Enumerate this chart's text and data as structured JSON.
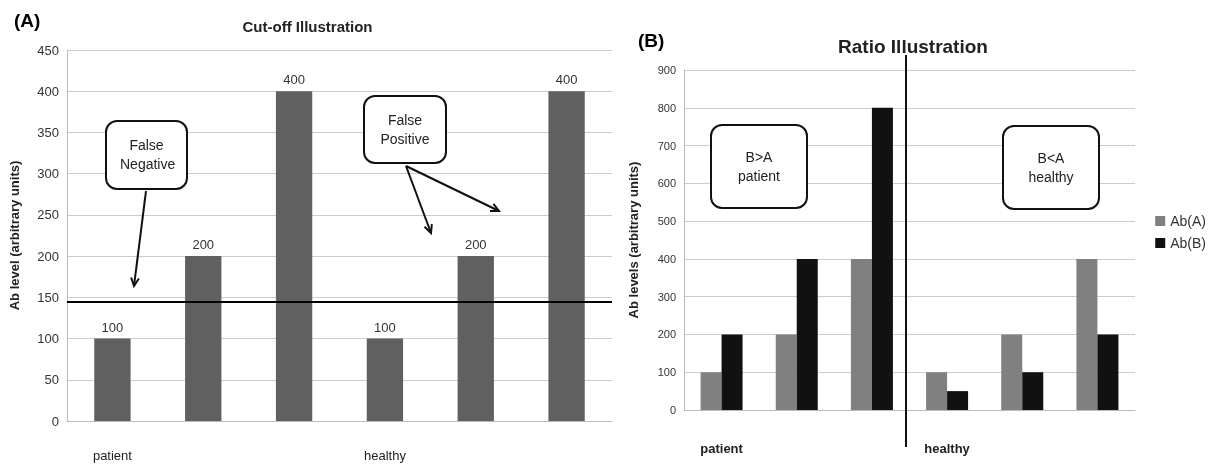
{
  "chart_data": [
    {
      "type": "bar",
      "title": "Cut-off Illustration",
      "ylabel": "Ab level (arbitrary units)",
      "categories": [
        "patient",
        null,
        null,
        "healthy",
        null,
        null
      ],
      "values": [
        100,
        200,
        400,
        100,
        200,
        400
      ],
      "color": "#606060",
      "ylim": [
        0,
        450
      ],
      "yticks": [
        0,
        50,
        100,
        150,
        200,
        250,
        300,
        350,
        400,
        450
      ],
      "grid": "y",
      "data_labels": true,
      "legend": false,
      "ref_lines": [
        {
          "axis": "y",
          "value": 145,
          "color": "#000000"
        }
      ],
      "annotations": [
        "(A)",
        "False Negative",
        "False Positive"
      ]
    },
    {
      "type": "bar",
      "title": "Ratio Illustration",
      "ylabel": "Ab levels (arbitrary units)",
      "categories": [
        "patient",
        null,
        null,
        "healthy",
        null,
        null
      ],
      "series": [
        {
          "name": "Ab(A)",
          "color": "#808080",
          "values": [
            100,
            200,
            400,
            100,
            200,
            400
          ]
        },
        {
          "name": "Ab(B)",
          "color": "#111111",
          "values": [
            200,
            400,
            800,
            50,
            100,
            200
          ]
        }
      ],
      "ylim": [
        0,
        900
      ],
      "yticks": [
        0,
        100,
        200,
        300,
        400,
        500,
        600,
        700,
        800,
        900
      ],
      "grid": "y",
      "legend": "right",
      "annotations": [
        "(B)",
        "B>A patient",
        "B<A healthy"
      ]
    }
  ]
}
